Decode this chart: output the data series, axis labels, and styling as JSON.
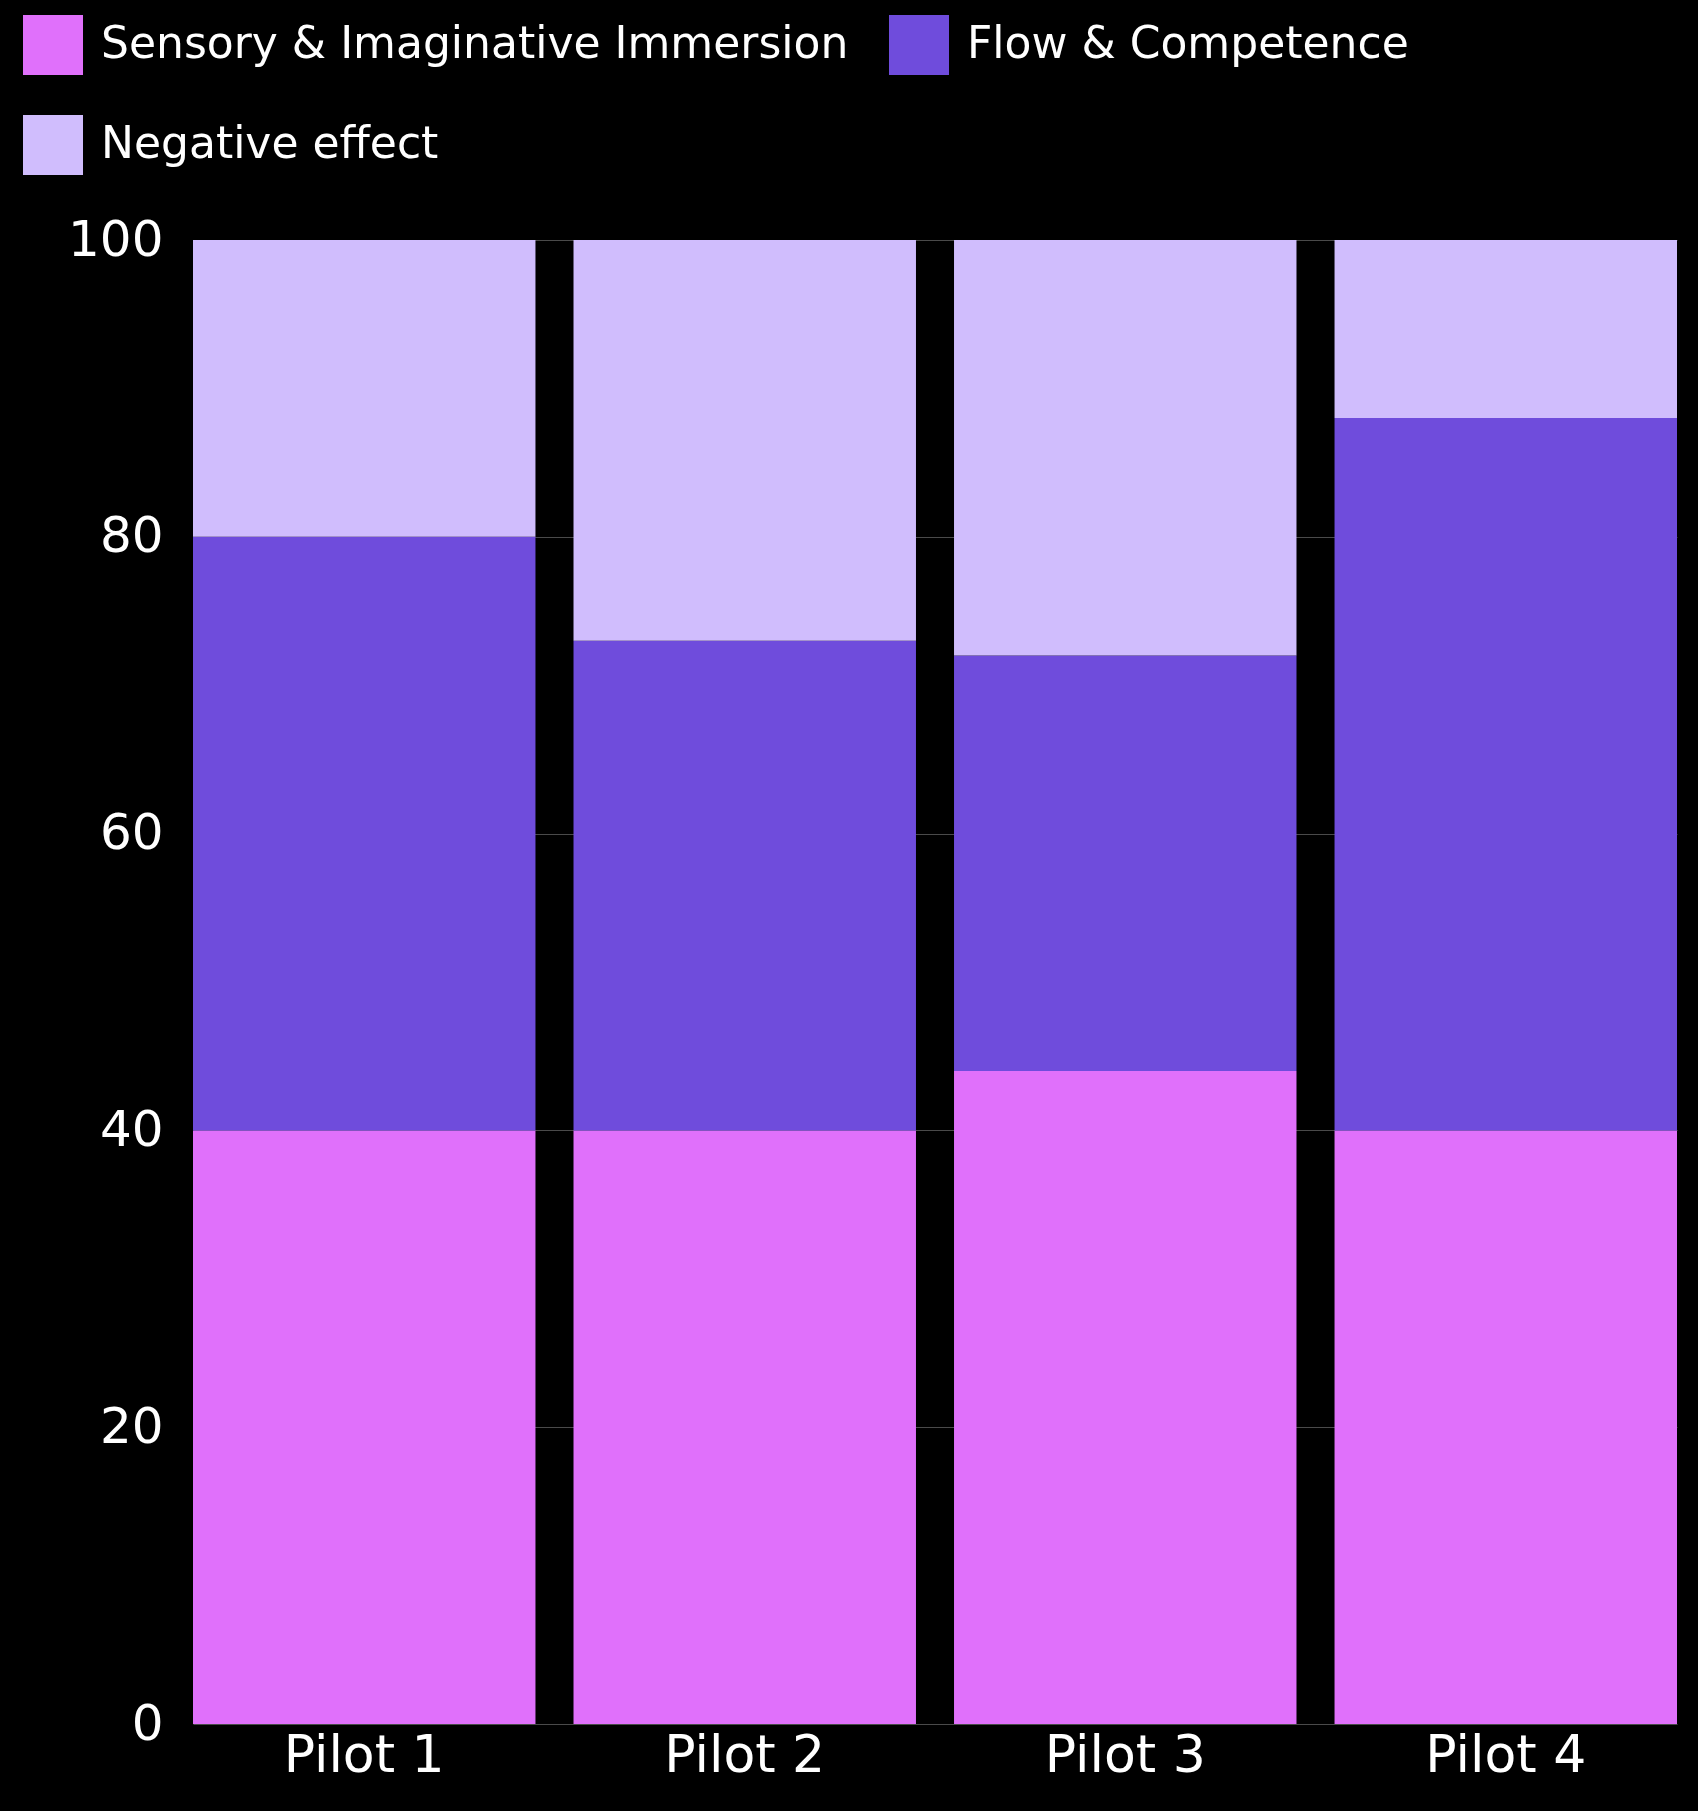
{
  "chart_data": {
    "type": "bar",
    "stacked": true,
    "categories": [
      "Pilot 1",
      "Pilot 2",
      "Pilot 3",
      "Pilot 4"
    ],
    "series": [
      {
        "name": "Sensory & Imaginative Immersion",
        "color": "#e070fb",
        "values": [
          40,
          40,
          44,
          40
        ]
      },
      {
        "name": "Flow & Competence",
        "color": "#6f4cdc",
        "values": [
          40,
          33,
          28,
          48
        ]
      },
      {
        "name": "Negative effect",
        "color": "#d0bdfd",
        "values": [
          20,
          27,
          28,
          12
        ]
      }
    ],
    "ylim": [
      0,
      100
    ],
    "yticks": [
      0,
      20,
      40,
      60,
      80,
      100
    ],
    "grid": "y",
    "legend": "top"
  }
}
